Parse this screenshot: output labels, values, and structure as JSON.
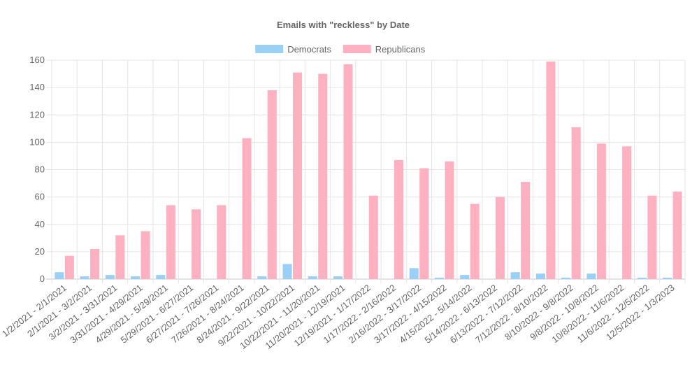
{
  "chart_data": {
    "type": "bar",
    "title": "Emails with \"reckless\" by Date",
    "xlabel": "",
    "ylabel": "",
    "ylim": [
      0,
      160
    ],
    "yticks": [
      0,
      20,
      40,
      60,
      80,
      100,
      120,
      140,
      160
    ],
    "grid": true,
    "legend_position": "top-center",
    "categories": [
      "1/2/2021 - 2/1/2021",
      "2/1/2021 - 3/2/2021",
      "3/2/2021 - 3/31/2021",
      "3/31/2021 - 4/29/2021",
      "4/29/2021 - 5/29/2021",
      "5/29/2021 - 6/27/2021",
      "6/27/2021 - 7/26/2021",
      "7/26/2021 - 8/24/2021",
      "8/24/2021 - 9/22/2021",
      "9/22/2021 - 10/22/2021",
      "10/22/2021 - 11/20/2021",
      "11/20/2021 - 12/19/2021",
      "12/19/2021 - 1/17/2022",
      "1/17/2022 - 2/16/2022",
      "2/16/2022 - 3/17/2022",
      "3/17/2022 - 4/15/2022",
      "4/15/2022 - 5/14/2022",
      "5/14/2022 - 6/13/2022",
      "6/13/2022 - 7/12/2022",
      "7/12/2022 - 8/10/2022",
      "8/10/2022 - 9/8/2022",
      "9/8/2022 - 10/8/2022",
      "10/8/2022 - 11/6/2022",
      "11/6/2022 - 12/5/2022",
      "12/5/2022 - 1/3/2023"
    ],
    "series": [
      {
        "name": "Democrats",
        "color": "#9ad0f5",
        "values": [
          5,
          2,
          3,
          2,
          3,
          0,
          0,
          0,
          2,
          11,
          2,
          2,
          0,
          0,
          8,
          1,
          3,
          0,
          5,
          4,
          1,
          4,
          0,
          1,
          1
        ]
      },
      {
        "name": "Republicans",
        "color": "#ffb1c1",
        "values": [
          17,
          22,
          32,
          35,
          54,
          51,
          54,
          103,
          138,
          151,
          150,
          157,
          61,
          87,
          81,
          86,
          55,
          60,
          71,
          159,
          111,
          99,
          97,
          61,
          64
        ]
      }
    ]
  }
}
